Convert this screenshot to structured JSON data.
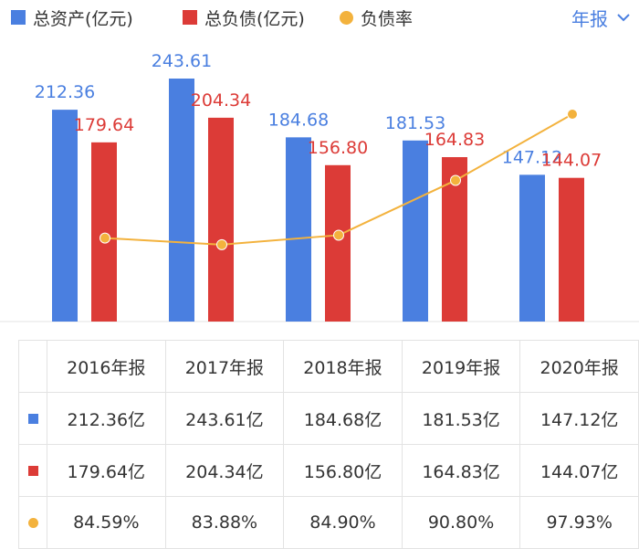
{
  "legend": {
    "assets_label": "总资产(亿元)",
    "liabilities_label": "总负债(亿元)",
    "ratio_label": "负债率"
  },
  "period_selector": {
    "label": "年报"
  },
  "colors": {
    "assets": "#4a7fe0",
    "liabilities": "#dc3b37",
    "ratio": "#f3b23d",
    "accent": "#4a7fe0"
  },
  "chart_data": {
    "type": "bar",
    "categories": [
      "2016年报",
      "2017年报",
      "2018年报",
      "2019年报",
      "2020年报"
    ],
    "series": [
      {
        "name": "总资产(亿元)",
        "values": [
          212.36,
          243.61,
          184.68,
          181.53,
          147.12
        ]
      },
      {
        "name": "总负债(亿元)",
        "values": [
          179.64,
          204.34,
          156.8,
          164.83,
          144.07
        ]
      },
      {
        "name": "负债率",
        "type": "line",
        "values": [
          84.59,
          83.88,
          84.9,
          90.8,
          97.93
        ],
        "unit": "%"
      }
    ],
    "data_labels": {
      "assets": [
        "212.36",
        "243.61",
        "184.68",
        "181.53",
        "147.12"
      ],
      "liabilities": [
        "179.64",
        "204.34",
        "156.80",
        "164.83",
        "144.07"
      ]
    },
    "ylim": [
      0,
      243.61
    ],
    "ratio_ylim": [
      75.6,
      99.6
    ],
    "grid": false
  },
  "table": {
    "headers": [
      "2016年报",
      "2017年报",
      "2018年报",
      "2019年报",
      "2020年报"
    ],
    "rows": [
      {
        "marker": "square",
        "color": "#4a7fe0",
        "cells": [
          "212.36亿",
          "243.61亿",
          "184.68亿",
          "181.53亿",
          "147.12亿"
        ]
      },
      {
        "marker": "square",
        "color": "#dc3b37",
        "cells": [
          "179.64亿",
          "204.34亿",
          "156.80亿",
          "164.83亿",
          "144.07亿"
        ]
      },
      {
        "marker": "dot",
        "color": "#f3b23d",
        "cells": [
          "84.59%",
          "83.88%",
          "84.90%",
          "90.80%",
          "97.93%"
        ]
      }
    ]
  }
}
